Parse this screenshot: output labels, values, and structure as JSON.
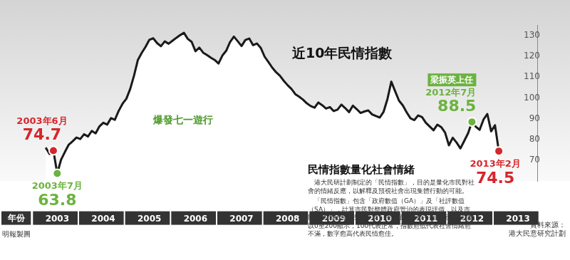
{
  "chart_data": {
    "type": "line",
    "title": "近10年民情指數",
    "x_label": "年份",
    "categories": [
      null,
      null,
      null,
      null,
      null,
      null,
      "2003",
      null,
      null,
      null,
      null,
      null,
      null,
      null,
      null,
      null,
      null,
      null,
      "2004",
      null,
      null,
      null,
      null,
      null,
      null,
      null,
      null,
      null,
      null,
      null,
      "2005",
      null,
      null,
      null,
      null,
      null,
      null,
      null,
      null,
      null,
      null,
      null,
      "2006",
      null,
      null,
      null,
      null,
      null,
      null,
      null,
      null,
      null,
      null,
      null,
      "2007",
      null,
      null,
      null,
      null,
      null,
      null,
      null,
      null,
      null,
      null,
      null,
      "2008",
      null,
      null,
      null,
      null,
      null,
      null,
      null,
      null,
      null,
      null,
      null,
      "2009",
      null,
      null,
      null,
      null,
      null,
      null,
      null,
      null,
      null,
      null,
      null,
      "2010",
      null,
      null,
      null,
      null,
      null,
      null,
      null,
      null,
      null,
      null,
      null,
      "2011",
      null,
      null,
      null,
      null,
      null,
      null,
      null,
      null,
      null,
      null,
      null,
      "2012",
      null,
      null,
      null,
      null,
      null,
      null,
      null,
      null,
      null,
      null,
      null,
      "2013",
      null,
      null,
      null,
      null,
      null
    ],
    "values": [
      null,
      null,
      null,
      76.2,
      73.1,
      74.7,
      63.8,
      70.4,
      74.1,
      77.6,
      79.2,
      81.0,
      80.3,
      82.6,
      81.5,
      84.2,
      83.0,
      86.4,
      88.1,
      87.2,
      90.3,
      89.5,
      93.8,
      97.2,
      99.6,
      104.3,
      110.7,
      118.2,
      121.6,
      124.5,
      127.9,
      128.6,
      126.3,
      124.8,
      127.1,
      126.0,
      127.4,
      128.8,
      130.1,
      131.2,
      128.3,
      126.9,
      122.4,
      124.1,
      121.7,
      120.6,
      119.3,
      118.2,
      116.5,
      120.3,
      122.6,
      126.8,
      129.4,
      127.2,
      124.9,
      127.8,
      128.5,
      125.3,
      126.1,
      124.0,
      119.8,
      117.2,
      114.5,
      112.3,
      110.6,
      108.2,
      106.1,
      104.3,
      101.8,
      100.6,
      99.2,
      97.4,
      96.1,
      95.3,
      97.8,
      96.5,
      94.9,
      95.6,
      93.7,
      94.4,
      96.8,
      95.1,
      93.2,
      96.3,
      94.6,
      92.8,
      93.5,
      94.0,
      92.1,
      91.3,
      90.6,
      93.4,
      99.5,
      107.8,
      103.2,
      98.7,
      96.4,
      93.1,
      90.2,
      89.4,
      91.6,
      90.8,
      88.1,
      86.3,
      84.5,
      87.2,
      86.0,
      83.4,
      77.3,
      80.9,
      78.6,
      75.8,
      79.4,
      83.1,
      88.5,
      86.2,
      84.7,
      89.6,
      92.3,
      84.0,
      86.9,
      74.5,
      null,
      null,
      null,
      null,
      null,
      null,
      null,
      null,
      null,
      null
    ],
    "color": "#1a1a1a",
    "ylim": [
      60,
      135
    ],
    "yticks": [
      70,
      80,
      90,
      100,
      110,
      120,
      130
    ],
    "grid": false,
    "annotations": [
      {
        "label": "2003年6月",
        "value": 74.7,
        "color": "#d7262b"
      },
      {
        "label": "2003年7月",
        "value": 63.8,
        "color": "#6cb33f"
      },
      {
        "label": "2012年7月",
        "value": 88.5,
        "color": "#6cb33f",
        "tag": "梁振英上任"
      },
      {
        "label": "2013年2月",
        "value": 74.5,
        "color": "#d7262b"
      }
    ],
    "photo_caption": "爆發七一遊行",
    "info_box": {
      "title": "民情指數量化社會情緒",
      "paragraphs": [
        "港大民研計劃制定的「民情指數」，目的是量化市民對社會的情緒反應，以解釋及預視社會出現集體行動的可能。",
        "「民情指數」包含「政府數值（GA）」及「社評數值（SA）」，計算市民對整體政府管治的表現評價，以及市民對整體社會狀況的評價，由多項民意數字組合而成。指數以0至200顯示，100代表正常，指數愈低代表社會情緒愈不滿，數字愈高代表民情愈佳。"
      ]
    },
    "credit": "明報製圖",
    "source": "資料來源：港大民意研究計劃"
  }
}
